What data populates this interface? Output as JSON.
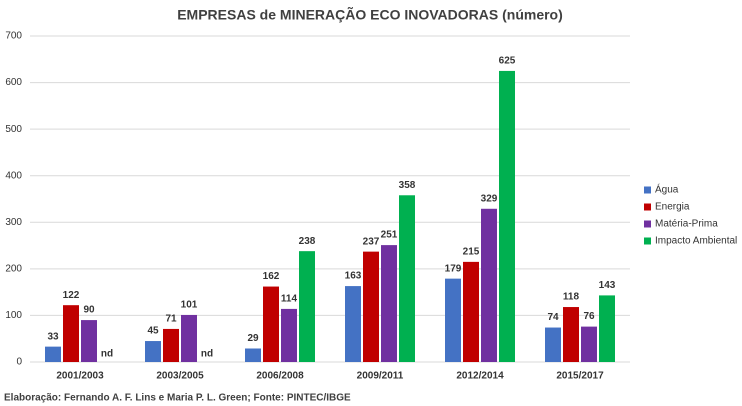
{
  "chart_data": {
    "type": "bar",
    "title": "EMPRESAS de MINERAÇÃO ECO INOVADORAS (número)",
    "caption": "Elaboração: Fernando A. F. Lins e Maria P. L. Green; Fonte: PINTEC/IBGE",
    "categories": [
      "2001/2003",
      "2003/2005",
      "2006/2008",
      "2009/2011",
      "2012/2014",
      "2015/2017"
    ],
    "series": [
      {
        "name": "Água",
        "color": "#4472c4",
        "values": [
          33,
          45,
          29,
          163,
          179,
          74
        ]
      },
      {
        "name": "Energia",
        "color": "#c00000",
        "values": [
          122,
          71,
          162,
          237,
          215,
          118
        ]
      },
      {
        "name": "Matéria-Prima",
        "color": "#7030a0",
        "values": [
          90,
          101,
          114,
          251,
          329,
          76
        ]
      },
      {
        "name": "Impacto Ambiental",
        "color": "#00b050",
        "values": [
          null,
          null,
          238,
          358,
          625,
          143
        ],
        "value_labels": [
          "nd",
          "nd",
          "238",
          "358",
          "625",
          "143"
        ]
      }
    ],
    "ylim": [
      0,
      700
    ],
    "yticks": [
      0,
      100,
      200,
      300,
      400,
      500,
      600,
      700
    ],
    "grid": true,
    "legend": "right"
  }
}
